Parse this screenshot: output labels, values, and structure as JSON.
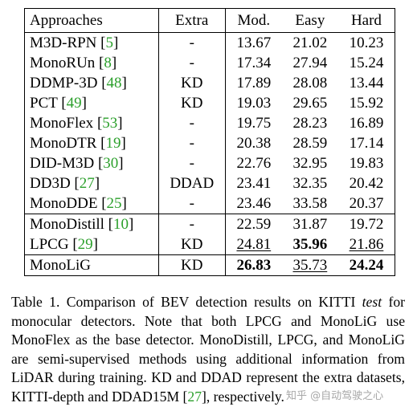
{
  "table": {
    "headers": [
      "Approaches",
      "Extra",
      "Mod.",
      "Easy",
      "Hard"
    ],
    "groups": [
      [
        {
          "name": "M3D-RPN",
          "ref": "5",
          "extra": "-",
          "mod": "13.67",
          "easy": "21.02",
          "hard": "10.23"
        },
        {
          "name": "MonoRUn",
          "ref": "8",
          "extra": "-",
          "mod": "17.34",
          "easy": "27.94",
          "hard": "15.24"
        },
        {
          "name": "DDMP-3D",
          "ref": "48",
          "extra": "KD",
          "mod": "17.89",
          "easy": "28.08",
          "hard": "13.44"
        },
        {
          "name": "PCT",
          "ref": "49",
          "extra": "KD",
          "mod": "19.03",
          "easy": "29.65",
          "hard": "15.92"
        },
        {
          "name": "MonoFlex",
          "ref": "53",
          "extra": "-",
          "mod": "19.75",
          "easy": "28.23",
          "hard": "16.89"
        },
        {
          "name": "MonoDTR",
          "ref": "19",
          "extra": "-",
          "mod": "20.38",
          "easy": "28.59",
          "hard": "17.14"
        },
        {
          "name": "DID-M3D",
          "ref": "30",
          "extra": "-",
          "mod": "22.76",
          "easy": "32.95",
          "hard": "19.83"
        },
        {
          "name": "DD3D",
          "ref": "27",
          "extra": "DDAD",
          "mod": "23.41",
          "easy": "32.35",
          "hard": "20.42"
        },
        {
          "name": "MonoDDE",
          "ref": "25",
          "extra": "-",
          "mod": "23.46",
          "easy": "33.58",
          "hard": "20.37"
        }
      ],
      [
        {
          "name": "MonoDistill",
          "ref": "10",
          "extra": "-",
          "mod": "22.59",
          "easy": "31.87",
          "hard": "19.72"
        },
        {
          "name": "LPCG",
          "ref": "29",
          "extra": "KD",
          "mod": "24.81",
          "easy": "35.96",
          "hard": "21.86",
          "mod_style": "underline",
          "easy_style": "bold",
          "hard_style": "underline"
        }
      ],
      [
        {
          "name": "MonoLiG",
          "ref": "",
          "extra": "KD",
          "mod": "26.83",
          "easy": "35.73",
          "hard": "24.24",
          "mod_style": "bold",
          "easy_style": "underline",
          "hard_style": "bold"
        }
      ]
    ]
  },
  "caption": {
    "p1": "Table 1. Comparison of BEV detection results on KITTI ",
    "test_word": "test",
    "p2": " for monocular detectors. Note that both LPCG and MonoLiG use MonoFlex as the base detector. MonoDistill, LPCG, and MonoLiG are semi-supervised methods using additional information from LiDAR during training. KD and DDAD represent the extra datasets, KITTI-depth and DDAD15M [",
    "ref": "27",
    "p3": "], respectively."
  },
  "watermark": "知乎 @自动驾驶之心",
  "colors": {
    "citation": "#2ca02c"
  }
}
